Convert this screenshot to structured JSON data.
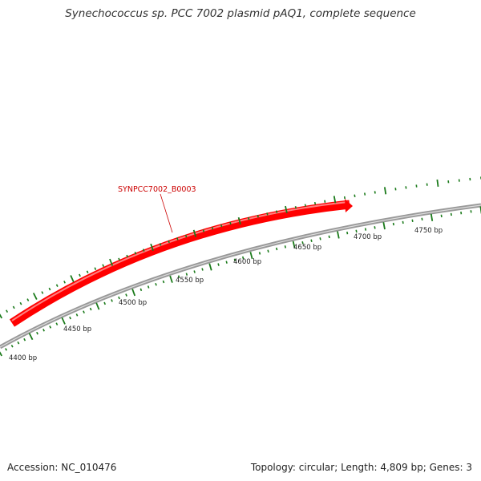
{
  "title": "Synechococcus sp. PCC 7002 plasmid pAQ1, complete sequence",
  "gene": {
    "label": "SYNPCC7002_B0003",
    "color": "#ff0000"
  },
  "scale": {
    "labels": [
      "4400 bp",
      "4450 bp",
      "4500 bp",
      "4550 bp",
      "4600 bp",
      "4650 bp",
      "4700 bp",
      "4750 bp"
    ]
  },
  "colors": {
    "backbone": "#888888",
    "ticks": "#1a7a1a",
    "gene": "#ff0000"
  },
  "footer": {
    "accession": "Accession: NC_010476",
    "summary": "Topology: circular; Length: 4,809 bp; Genes: 3"
  }
}
